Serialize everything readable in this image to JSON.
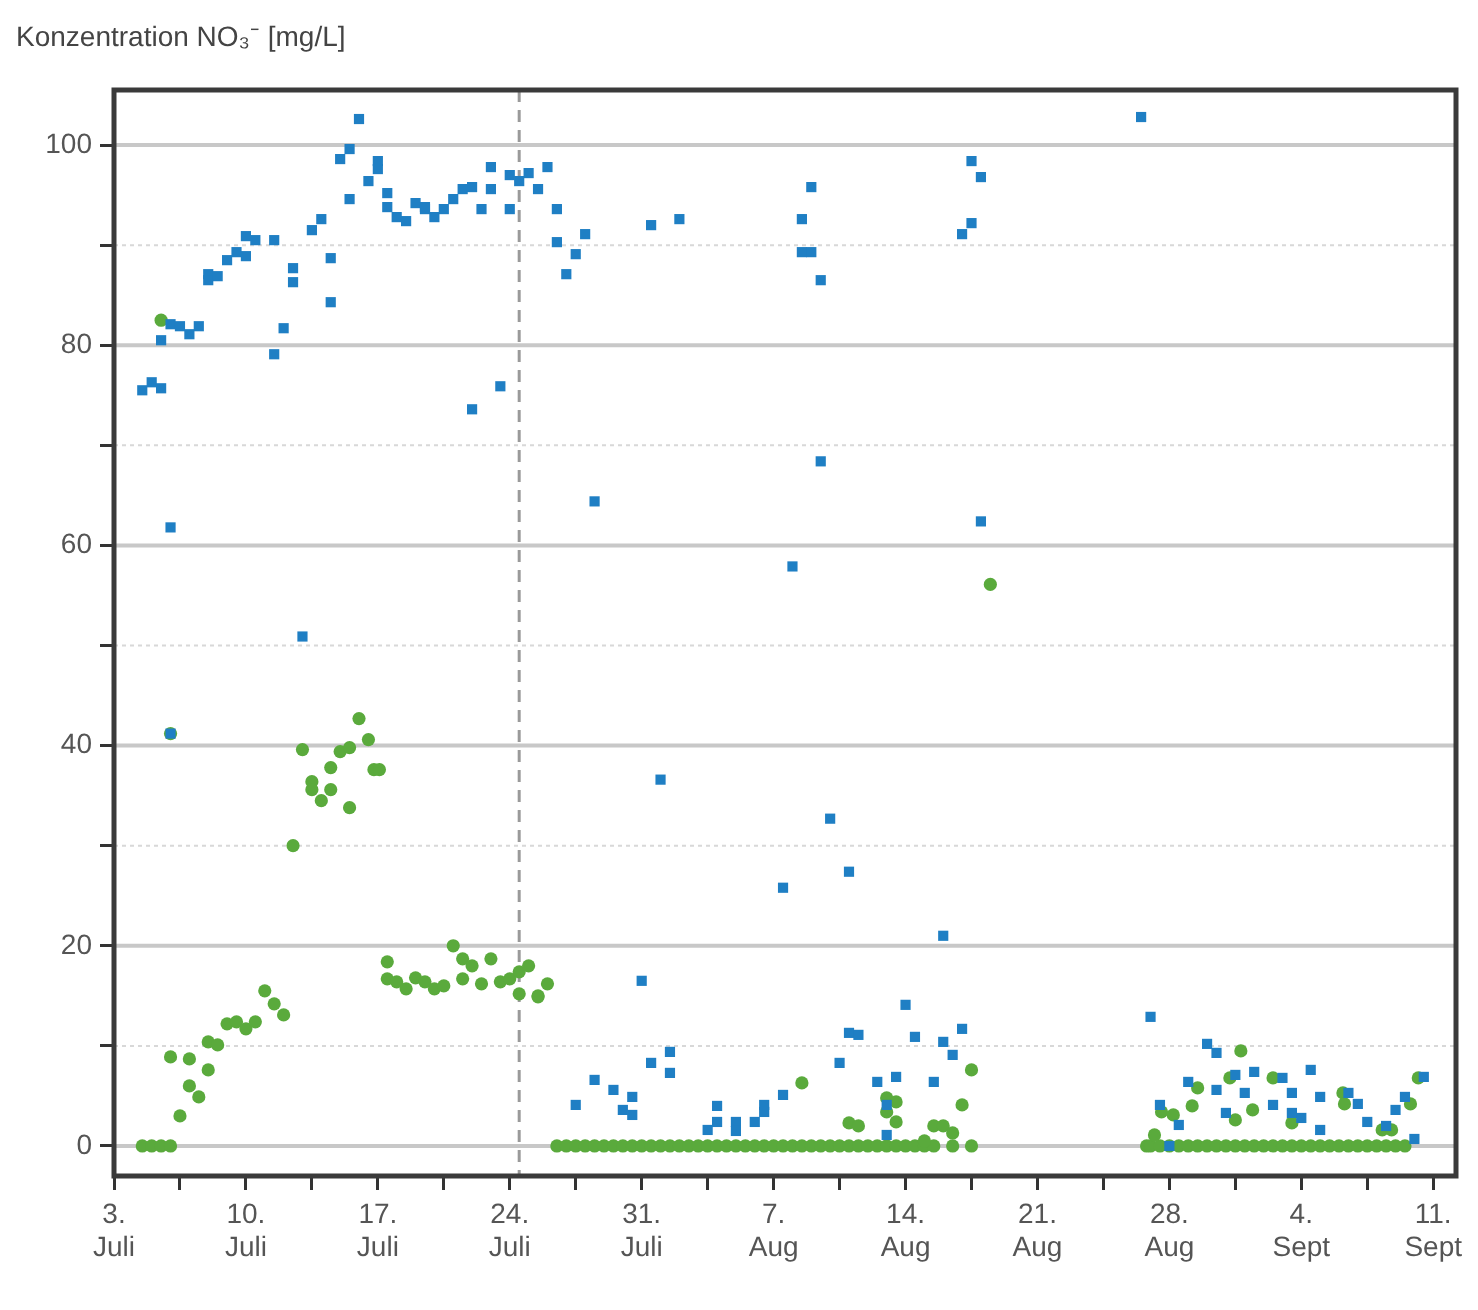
{
  "chart_data": {
    "type": "scatter",
    "ylabel": "Konzentration  NO₃⁻ [mg/L]",
    "grid": "y",
    "legend": false,
    "xlim": [
      "--07-03T00:00",
      "--09-12T05:00"
    ],
    "ylim": [
      -3,
      105.5
    ],
    "xticks": [
      {
        "value": "--07-03T00:00",
        "label": "3.\nJuli"
      },
      {
        "value": "--07-06T12:00",
        "label": null
      },
      {
        "value": "--07-10T00:00",
        "label": "10.\nJuli"
      },
      {
        "value": "--07-13T12:00",
        "label": null
      },
      {
        "value": "--07-17T00:00",
        "label": "17.\nJuli"
      },
      {
        "value": "--07-20T12:00",
        "label": null
      },
      {
        "value": "--07-24T00:00",
        "label": "24.\nJuli"
      },
      {
        "value": "--07-27T12:00",
        "label": null
      },
      {
        "value": "--07-31T00:00",
        "label": "31.\nJuli"
      },
      {
        "value": "--08-03T12:00",
        "label": null
      },
      {
        "value": "--08-07T00:00",
        "label": "7.\nAug"
      },
      {
        "value": "--08-10T12:00",
        "label": null
      },
      {
        "value": "--08-14T00:00",
        "label": "14.\nAug"
      },
      {
        "value": "--08-17T12:00",
        "label": null
      },
      {
        "value": "--08-21T00:00",
        "label": "21.\nAug"
      },
      {
        "value": "--08-24T12:00",
        "label": null
      },
      {
        "value": "--08-28T00:00",
        "label": "28.\nAug"
      },
      {
        "value": "--08-31T12:00",
        "label": null
      },
      {
        "value": "--09-04T00:00",
        "label": "4.\nSept"
      },
      {
        "value": "--09-07T12:00",
        "label": null
      },
      {
        "value": "--09-11T00:00",
        "label": "11.\nSept"
      }
    ],
    "yticks": [
      0,
      {
        "value": 10,
        "label": null
      },
      20,
      {
        "value": 30,
        "label": null
      },
      40,
      {
        "value": 50,
        "label": null
      },
      60,
      {
        "value": 70,
        "label": null
      },
      80,
      {
        "value": 90,
        "label": null
      },
      100
    ],
    "ref_lines": [
      {
        "axis": "x",
        "value": "--07-24T12:00",
        "color": "#9a9a9a",
        "line_style": "dashed"
      }
    ],
    "series": [
      {
        "color": "#1f7fc4",
        "marker": "square",
        "x": [
          "--07-04T12:00",
          "--07-05T00:00",
          "--07-05T12:00",
          "--07-05T12:00",
          "--07-06T00:00",
          "--07-06T00:00",
          "--07-06T00:00",
          "--07-06T12:00",
          "--07-07T00:00",
          "--07-07T12:00",
          "--07-08T00:00",
          "--07-08T00:00",
          "--07-08T12:00",
          "--07-09T00:00",
          "--07-09T12:00",
          "--07-10T00:00",
          "--07-10T00:00",
          "--07-10T12:00",
          "--07-11T12:00",
          "--07-11T12:00",
          "--07-12T00:00",
          "--07-12T12:00",
          "--07-12T12:00",
          "--07-13T00:00",
          "--07-13T12:00",
          "--07-14T00:00",
          "--07-14T12:00",
          "--07-14T12:00",
          "--07-15T00:00",
          "--07-15T12:00",
          "--07-15T12:00",
          "--07-16T00:00",
          "--07-16T12:00",
          "--07-17T00:00",
          "--07-17T00:00",
          "--07-17T12:00",
          "--07-17T12:00",
          "--07-18T00:00",
          "--07-18T12:00",
          "--07-19T00:00",
          "--07-19T12:00",
          "--07-19T12:00",
          "--07-20T00:00",
          "--07-20T12:00",
          "--07-21T00:00",
          "--07-21T12:00",
          "--07-22T00:00",
          "--07-22T00:00",
          "--07-22T12:00",
          "--07-23T00:00",
          "--07-23T00:00",
          "--07-23T12:00",
          "--07-24T00:00",
          "--07-24T00:00",
          "--07-24T12:00",
          "--07-25T00:00",
          "--07-25T12:00",
          "--07-26T00:00",
          "--07-26T12:00",
          "--07-26T12:00",
          "--07-27T00:00",
          "--07-27T12:00",
          "--07-28T00:00",
          "--07-28T12:00",
          "--07-31T12:00",
          "--08-02T00:00",
          "--08-08T00:00",
          "--08-08T12:00",
          "--08-08T12:00",
          "--08-09T00:00",
          "--08-09T00:00",
          "--08-09T12:00",
          "--08-09T12:00",
          "--08-17T00:00",
          "--08-17T12:00",
          "--08-17T12:00",
          "--08-18T00:00",
          "--08-18T00:00",
          "--08-26T12:00",
          "--07-27T12:00",
          "--07-28T12:00",
          "--07-29T12:00",
          "--07-30T00:00",
          "--07-30T12:00",
          "--07-30T12:00",
          "--07-31T00:00",
          "--07-31T12:00",
          "--08-01T00:00",
          "--08-01T12:00",
          "--08-01T12:00",
          "--08-03T12:00",
          "--08-04T00:00",
          "--08-04T00:00",
          "--08-05T00:00",
          "--08-05T00:00",
          "--08-06T00:00",
          "--08-06T12:00",
          "--08-06T12:00",
          "--08-07T12:00",
          "--08-07T12:00",
          "--08-10T00:00",
          "--08-10T12:00",
          "--08-11T00:00",
          "--08-11T00:00",
          "--08-11T12:00",
          "--08-12T12:00",
          "--08-13T00:00",
          "--08-13T00:00",
          "--08-13T12:00",
          "--08-14T00:00",
          "--08-14T12:00",
          "--08-15T12:00",
          "--08-16T00:00",
          "--08-16T00:00",
          "--08-16T12:00",
          "--08-17T00:00",
          "--08-27T00:00",
          "--08-27T12:00",
          "--08-28T00:00",
          "--08-28T12:00",
          "--08-29T00:00",
          "--08-30T00:00",
          "--08-30T12:00",
          "--08-30T12:00",
          "--08-31T00:00",
          "--08-31T12:00",
          "--09-01T00:00",
          "--09-01T12:00",
          "--09-02T12:00",
          "--09-03T00:00",
          "--09-03T12:00",
          "--09-03T12:00",
          "--09-04T00:00",
          "--09-04T12:00",
          "--09-05T00:00",
          "--09-05T00:00",
          "--09-06T12:00",
          "--09-07T00:00",
          "--09-07T12:00",
          "--09-08T12:00",
          "--09-09T00:00",
          "--09-09T12:00",
          "--09-10T00:00",
          "--09-10T12:00"
        ],
        "values": [
          75.5,
          76.3,
          75.7,
          80.5,
          61.8,
          41.2,
          82.1,
          81.9,
          81.1,
          81.9,
          87.1,
          86.5,
          86.9,
          88.5,
          89.3,
          88.9,
          90.9,
          90.5,
          90.5,
          79.1,
          81.7,
          87.7,
          86.3,
          50.9,
          91.5,
          92.6,
          88.7,
          84.3,
          98.6,
          99.6,
          94.6,
          102.6,
          96.4,
          98.4,
          97.6,
          95.2,
          93.8,
          92.8,
          92.4,
          94.2,
          93.8,
          93.6,
          92.8,
          93.6,
          94.6,
          95.6,
          95.8,
          73.6,
          93.6,
          95.6,
          97.8,
          75.9,
          97.0,
          93.6,
          96.4,
          97.2,
          95.6,
          97.8,
          93.6,
          90.3,
          87.1,
          89.1,
          91.1,
          64.4,
          92.0,
          92.6,
          57.9,
          92.6,
          89.3,
          89.3,
          95.8,
          86.5,
          68.4,
          91.1,
          92.2,
          98.4,
          96.8,
          62.4,
          102.8,
          4.1,
          6.6,
          5.6,
          3.6,
          3.1,
          4.9,
          16.5,
          8.3,
          36.6,
          7.3,
          9.4,
          1.6,
          4.0,
          2.4,
          2.4,
          1.5,
          2.4,
          3.4,
          4.1,
          5.1,
          25.8,
          32.7,
          8.3,
          27.4,
          11.3,
          11.1,
          6.4,
          1.1,
          4.1,
          6.9,
          14.1,
          10.9,
          6.4,
          21.0,
          10.4,
          9.1,
          11.7,
          12.9,
          4.1,
          0,
          2.1,
          6.4,
          10.2,
          9.3,
          5.6,
          3.3,
          7.1,
          5.3,
          7.4,
          4.1,
          6.8,
          5.3,
          3.3,
          2.8,
          7.6,
          4.9,
          1.6,
          5.3,
          4.2,
          2.4,
          2.0,
          3.6,
          4.9,
          0.7,
          6.9
        ]
      },
      {
        "color": "#5aaa3c",
        "marker": "circle",
        "x": [
          "--07-04T12:00",
          "--07-05T00:00",
          "--07-05T12:00",
          "--07-06T00:00",
          "--07-05T12:00",
          "--07-06T00:00",
          "--07-06T00:00",
          "--07-06T12:00",
          "--07-07T00:00",
          "--07-07T00:00",
          "--07-07T12:00",
          "--07-08T00:00",
          "--07-08T00:00",
          "--07-08T12:00",
          "--07-09T00:00",
          "--07-09T12:00",
          "--07-10T00:00",
          "--07-10T12:00",
          "--07-11T00:00",
          "--07-11T12:00",
          "--07-12T00:00",
          "--07-12T12:00",
          "--07-13T00:00",
          "--07-13T12:00",
          "--07-13T12:00",
          "--07-14T00:00",
          "--07-14T12:00",
          "--07-14T12:00",
          "--07-15T00:00",
          "--07-15T12:00",
          "--07-15T12:00",
          "--07-16T00:00",
          "--07-16T12:00",
          "--07-16T19:00",
          "--07-17T02:00",
          "--07-17T12:00",
          "--07-17T12:00",
          "--07-18T00:00",
          "--07-18T12:00",
          "--07-19T00:00",
          "--07-19T12:00",
          "--07-20T00:00",
          "--07-20T12:00",
          "--07-21T00:00",
          "--07-21T12:00",
          "--07-21T12:00",
          "--07-22T00:00",
          "--07-22T12:00",
          "--07-23T00:00",
          "--07-23T12:00",
          "--07-24T00:00",
          "--07-24T12:00",
          "--07-24T12:00",
          "--07-25T00:00",
          "--07-25T12:00",
          "--07-25T12:00",
          "--07-26T00:00",
          "--07-26T12:00",
          "--07-27T00:00",
          "--07-27T12:00",
          "--07-28T00:00",
          "--07-28T12:00",
          "--07-29T00:00",
          "--07-29T12:00",
          "--07-30T00:00",
          "--07-30T12:00",
          "--07-31T00:00",
          "--07-31T12:00",
          "--08-01T00:00",
          "--08-01T12:00",
          "--08-02T00:00",
          "--08-02T12:00",
          "--08-03T00:00",
          "--08-03T12:00",
          "--08-04T00:00",
          "--08-04T12:00",
          "--08-05T00:00",
          "--08-05T12:00",
          "--08-06T00:00",
          "--08-06T12:00",
          "--08-07T00:00",
          "--08-07T12:00",
          "--08-08T00:00",
          "--08-08T12:00",
          "--08-09T00:00",
          "--08-09T12:00",
          "--08-10T00:00",
          "--08-10T12:00",
          "--08-11T00:00",
          "--08-11T12:00",
          "--08-12T00:00",
          "--08-12T12:00",
          "--08-13T00:00",
          "--08-13T12:00",
          "--08-14T00:00",
          "--08-14T12:00",
          "--08-15T00:00",
          "--08-15T12:00",
          "--08-16T12:00",
          "--08-17T12:00",
          "--08-08T12:00",
          "--08-11T00:00",
          "--08-11T12:00",
          "--08-13T00:00",
          "--08-13T00:00",
          "--08-13T12:00",
          "--08-13T12:00",
          "--08-15T00:00",
          "--08-15T12:00",
          "--08-16T00:00",
          "--08-16T12:00",
          "--08-17T00:00",
          "--08-17T12:00",
          "--08-18T12:00",
          "--08-26T19:00",
          "--08-27T00:00",
          "--08-27T12:00",
          "--08-28T00:00",
          "--08-28T12:00",
          "--08-29T00:00",
          "--08-29T12:00",
          "--08-30T00:00",
          "--08-30T12:00",
          "--08-31T00:00",
          "--08-31T12:00",
          "--09-01T00:00",
          "--09-01T12:00",
          "--09-02T00:00",
          "--09-02T12:00",
          "--09-03T00:00",
          "--09-03T12:00",
          "--09-04T00:00",
          "--09-04T12:00",
          "--09-05T00:00",
          "--09-05T12:00",
          "--09-06T00:00",
          "--09-06T12:00",
          "--09-07T00:00",
          "--09-07T12:00",
          "--09-08T00:00",
          "--09-08T12:00",
          "--09-09T00:00",
          "--09-09T12:00",
          "--08-27T05:00",
          "--08-27T14:00",
          "--08-28T05:00",
          "--08-29T05:00",
          "--08-29T12:00",
          "--08-31T05:00",
          "--08-31T12:00",
          "--08-31T19:00",
          "--09-01T10:00",
          "--09-02T12:00",
          "--09-03T12:00",
          "--09-06T05:00",
          "--09-06T07:00",
          "--09-08T07:00",
          "--09-08T19:00",
          "--09-09T19:00",
          "--09-10T05:00"
        ],
        "values": [
          0,
          0,
          0,
          0,
          82.5,
          41.2,
          8.9,
          3.0,
          6.0,
          8.7,
          4.9,
          7.6,
          10.4,
          10.1,
          12.2,
          12.4,
          11.7,
          12.4,
          15.5,
          14.2,
          13.1,
          30.0,
          39.6,
          36.4,
          35.6,
          34.5,
          35.6,
          37.8,
          39.4,
          39.8,
          33.8,
          42.7,
          40.6,
          37.6,
          37.6,
          18.4,
          16.7,
          16.4,
          15.7,
          16.8,
          16.4,
          15.7,
          16.0,
          20.0,
          18.7,
          16.7,
          18.0,
          16.2,
          18.7,
          16.4,
          16.7,
          15.2,
          17.4,
          18.0,
          15.0,
          14.9,
          16.2,
          0,
          0,
          0,
          0,
          0,
          0,
          0,
          0,
          0,
          0,
          0,
          0,
          0,
          0,
          0,
          0,
          0,
          0,
          0,
          0,
          0,
          0,
          0,
          0,
          0,
          0,
          0,
          0,
          0,
          0,
          0,
          0,
          0,
          0,
          0,
          0,
          0,
          0,
          0,
          0,
          0,
          0,
          0,
          6.3,
          2.3,
          2.0,
          3.4,
          4.8,
          4.4,
          2.4,
          0.5,
          2.0,
          2.0,
          1.3,
          4.1,
          7.6,
          56.1,
          0,
          0,
          0,
          0,
          0,
          0,
          0,
          0,
          0,
          0,
          0,
          0,
          0,
          0,
          0,
          0,
          0,
          0,
          0,
          0,
          0,
          0,
          0,
          0,
          0,
          0,
          0,
          0,
          0,
          1.1,
          3.4,
          3.1,
          4.0,
          5.8,
          6.8,
          2.6,
          9.5,
          3.6,
          6.8,
          2.3,
          5.3,
          4.2,
          1.6,
          1.6,
          4.2,
          6.8
        ]
      }
    ]
  }
}
